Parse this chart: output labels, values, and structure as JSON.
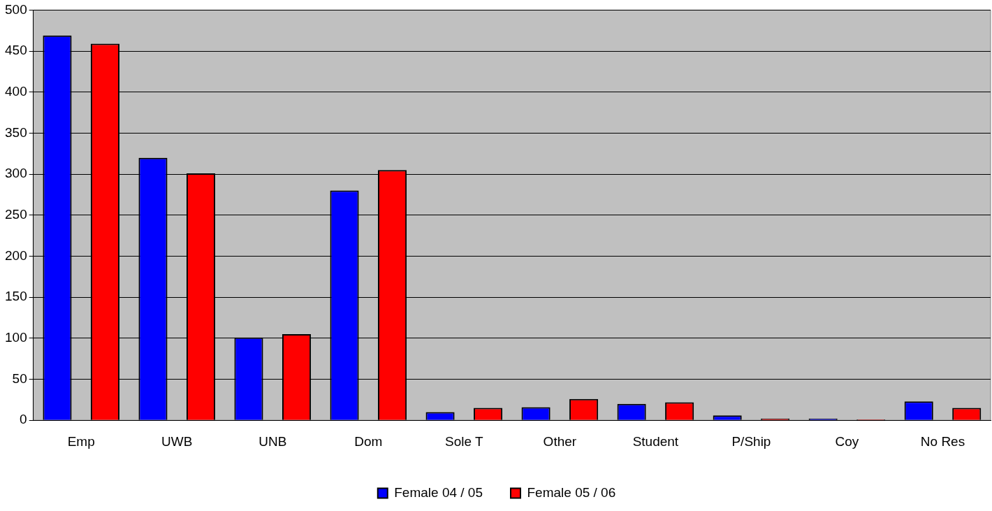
{
  "chart_data": {
    "type": "bar",
    "categories": [
      "Emp",
      "UWB",
      "UNB",
      "Dom",
      "Sole T",
      "Other",
      "Student",
      "P/Ship",
      "Coy",
      "No Res"
    ],
    "series": [
      {
        "name": "Female 04 / 05",
        "color": "#0000ff",
        "values": [
          469,
          320,
          101,
          280,
          10,
          16,
          20,
          6,
          2,
          23
        ]
      },
      {
        "name": "Female 05 / 06",
        "color": "#ff0000",
        "values": [
          459,
          301,
          105,
          305,
          15,
          26,
          22,
          2,
          1,
          15
        ]
      }
    ],
    "ylim": [
      0,
      500
    ],
    "yticks": [
      0,
      50,
      100,
      150,
      200,
      250,
      300,
      350,
      400,
      450,
      500
    ],
    "grid": "y",
    "legend": "bottom"
  }
}
